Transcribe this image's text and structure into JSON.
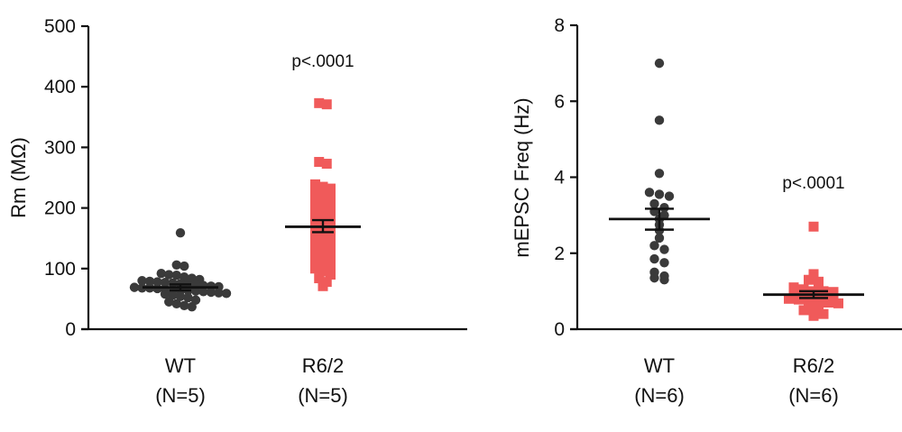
{
  "chart_data": [
    {
      "type": "scatter",
      "ylabel": "Rm (MΩ)",
      "ylim": [
        0,
        500
      ],
      "yticks": [
        0,
        100,
        200,
        300,
        400,
        500
      ],
      "annotation": "p<.0001",
      "groups": [
        {
          "label": "WT",
          "sublabel": "(N=5)",
          "color": "#3a3a3a",
          "marker": "circle",
          "mean": 69,
          "sem_low": 64,
          "sem_high": 74,
          "values": [
            159,
            106,
            104,
            92,
            90,
            89,
            86,
            84,
            82,
            80,
            79,
            78,
            77,
            76,
            75,
            74,
            73,
            72,
            71,
            70,
            69,
            68,
            68,
            67,
            66,
            65,
            64,
            64,
            63,
            62,
            61,
            60,
            59,
            58,
            56,
            54,
            52,
            48,
            45,
            42,
            39,
            37
          ]
        },
        {
          "label": "R6/2",
          "sublabel": "(N=5)",
          "color": "#f05a5a",
          "marker": "square",
          "mean": 169,
          "sem_low": 160,
          "sem_high": 180,
          "values": [
            373,
            371,
            276,
            273,
            239,
            235,
            232,
            228,
            224,
            218,
            215,
            210,
            205,
            200,
            196,
            192,
            188,
            184,
            180,
            176,
            172,
            168,
            165,
            160,
            155,
            150,
            146,
            142,
            138,
            134,
            130,
            126,
            122,
            118,
            114,
            110,
            105,
            100,
            95,
            90,
            84,
            78,
            71
          ]
        }
      ]
    },
    {
      "type": "scatter",
      "ylabel": "mEPSC Freq (Hz)",
      "ylim": [
        0,
        8
      ],
      "yticks": [
        0,
        2,
        4,
        6,
        8
      ],
      "annotation": "p<.0001",
      "groups": [
        {
          "label": "WT",
          "sublabel": "(N=6)",
          "color": "#3a3a3a",
          "marker": "circle",
          "mean": 2.9,
          "sem_low": 2.62,
          "sem_high": 3.17,
          "values": [
            7.0,
            5.5,
            4.1,
            3.6,
            3.55,
            3.5,
            3.3,
            3.2,
            3.1,
            3.0,
            2.9,
            2.75,
            2.6,
            2.4,
            2.2,
            2.1,
            1.85,
            1.75,
            1.5,
            1.4,
            1.35,
            1.3
          ]
        },
        {
          "label": "R6/2",
          "sublabel": "(N=6)",
          "color": "#f05a5a",
          "marker": "square",
          "mean": 0.91,
          "sem_low": 0.82,
          "sem_high": 1.0,
          "values": [
            2.7,
            1.45,
            1.3,
            1.25,
            1.1,
            1.05,
            1.0,
            1.0,
            0.98,
            0.95,
            0.92,
            0.9,
            0.88,
            0.85,
            0.8,
            0.78,
            0.75,
            0.72,
            0.7,
            0.68,
            0.65,
            0.6,
            0.5,
            0.45,
            0.4,
            0.35
          ]
        }
      ]
    }
  ]
}
